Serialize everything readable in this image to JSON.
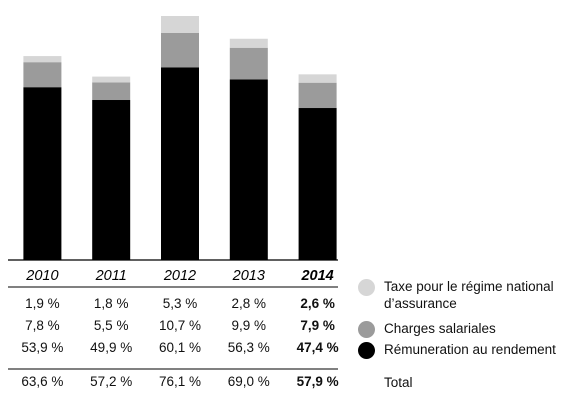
{
  "chart_data": {
    "type": "bar",
    "stacked": true,
    "categories": [
      "2010",
      "2011",
      "2012",
      "2013",
      "2014"
    ],
    "highlight_category": "2014",
    "series": [
      {
        "name": "Rémuneration au rendement",
        "values": [
          53.9,
          49.9,
          60.1,
          56.3,
          47.4
        ],
        "labels": [
          "53,9 %",
          "49,9 %",
          "60,1 %",
          "56,3 %",
          "47,4 %"
        ],
        "color": "#000000"
      },
      {
        "name": "Charges salariales",
        "values": [
          7.8,
          5.5,
          10.7,
          9.9,
          7.9
        ],
        "labels": [
          "7,8 %",
          "5,5 %",
          "10,7 %",
          "9,9 %",
          "7,9 %"
        ],
        "color": "#9b9b9b"
      },
      {
        "name": "Taxe pour le régime national d’assurance",
        "values": [
          1.9,
          1.8,
          5.3,
          2.8,
          2.6
        ],
        "labels": [
          "1,9 %",
          "1,8 %",
          "5,3 %",
          "2,8 %",
          "2,6 %"
        ],
        "color": "#d6d6d6"
      }
    ],
    "table_row_order": [
      2,
      1,
      0
    ],
    "totals": {
      "name": "Total",
      "values": [
        63.6,
        57.2,
        76.1,
        69.0,
        57.9
      ],
      "labels": [
        "63,6 %",
        "57,2 %",
        "76,1 %",
        "69,0 %",
        "57,9 %"
      ]
    },
    "ylim": [
      0,
      80
    ],
    "grid": false
  },
  "legend": {
    "tax": "Taxe pour le régime national d’assurance",
    "charges": "Charges salariales",
    "remuneration": "Rémuneration au rendement",
    "total": "Total"
  }
}
